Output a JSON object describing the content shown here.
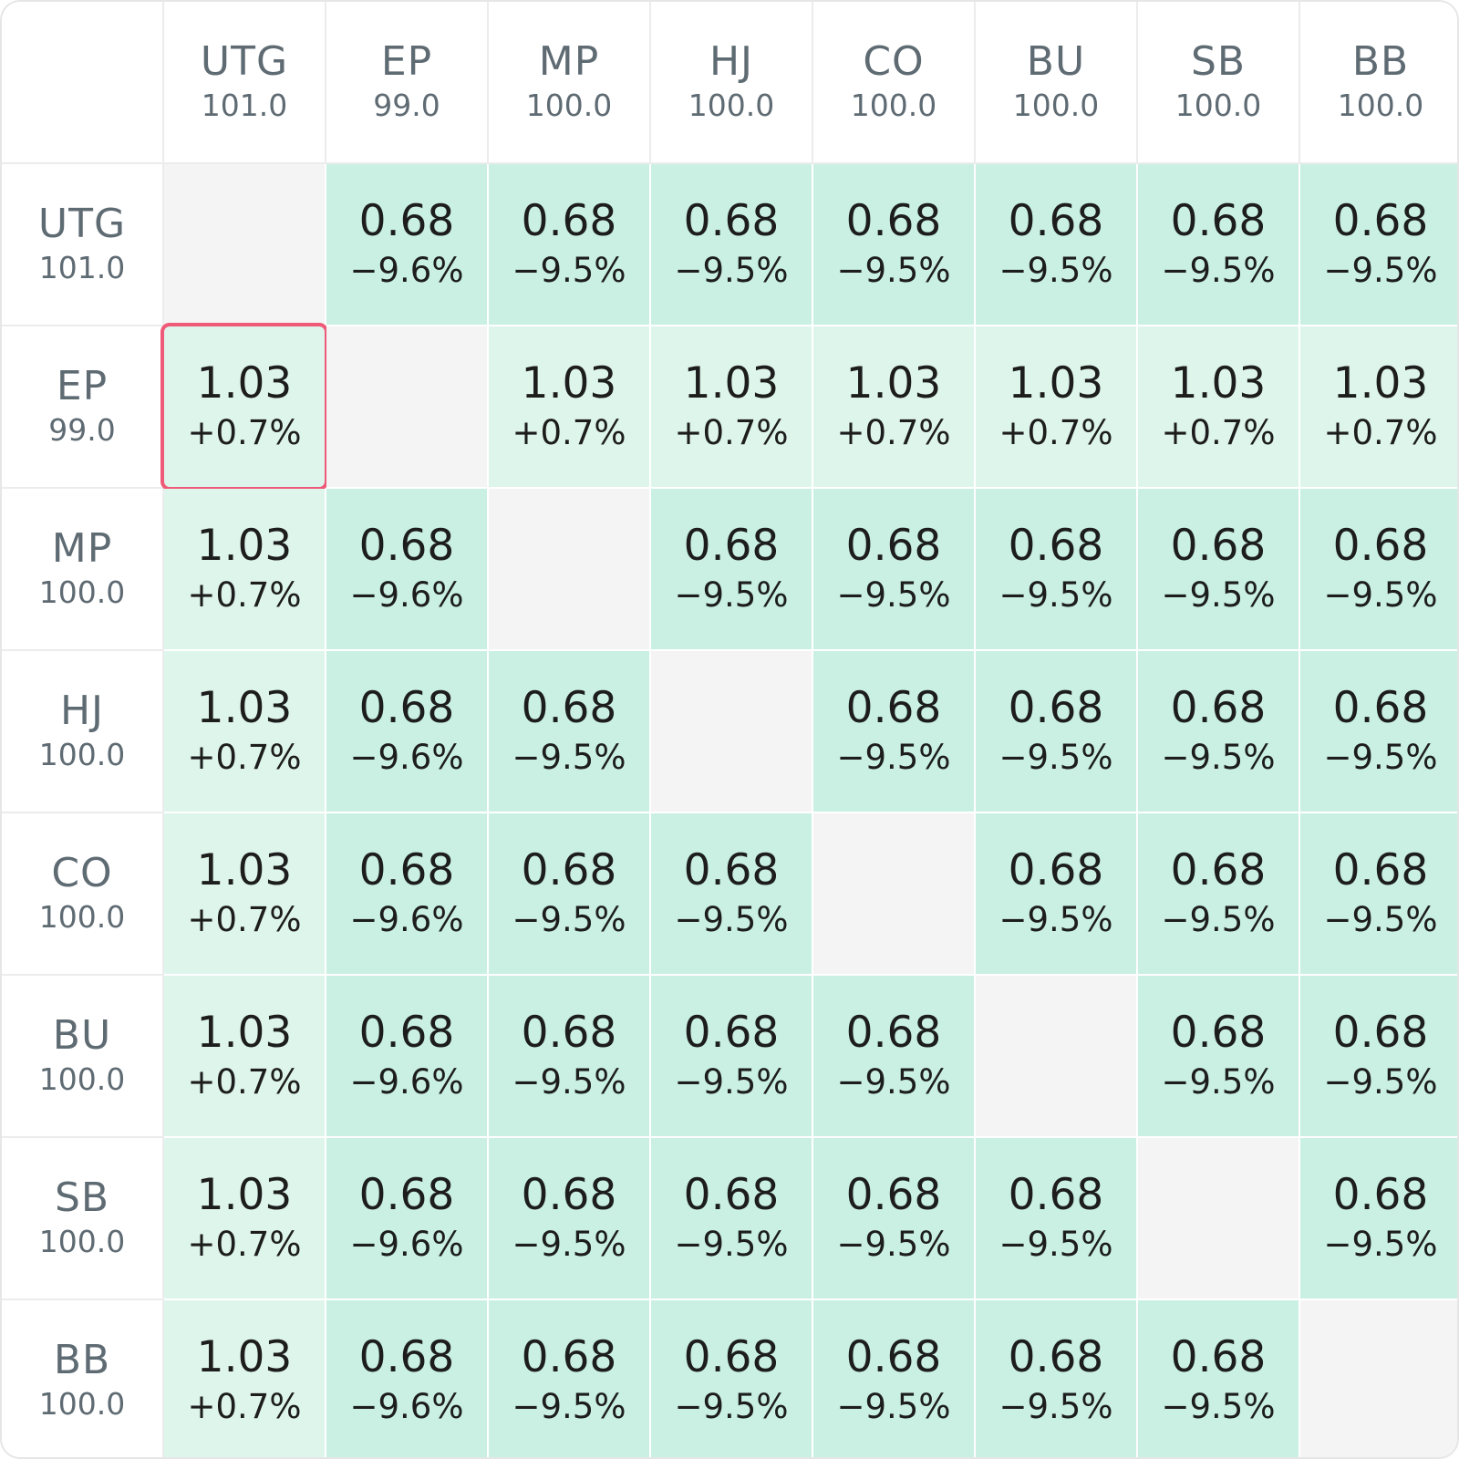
{
  "colors": {
    "cell_negative": "#c9f0e2",
    "cell_positive": "#def5ec",
    "cell_empty": "#f4f4f4",
    "selection_border": "#ee5a78"
  },
  "columns": [
    {
      "name": "UTG",
      "stack": "101.0"
    },
    {
      "name": "EP",
      "stack": "99.0"
    },
    {
      "name": "MP",
      "stack": "100.0"
    },
    {
      "name": "HJ",
      "stack": "100.0"
    },
    {
      "name": "CO",
      "stack": "100.0"
    },
    {
      "name": "BU",
      "stack": "100.0"
    },
    {
      "name": "SB",
      "stack": "100.0"
    },
    {
      "name": "BB",
      "stack": "100.0"
    }
  ],
  "rows": [
    {
      "name": "UTG",
      "stack": "101.0",
      "cells": [
        null,
        {
          "value": "0.68",
          "change": "−9.6%",
          "tone": "negative"
        },
        {
          "value": "0.68",
          "change": "−9.5%",
          "tone": "negative"
        },
        {
          "value": "0.68",
          "change": "−9.5%",
          "tone": "negative"
        },
        {
          "value": "0.68",
          "change": "−9.5%",
          "tone": "negative"
        },
        {
          "value": "0.68",
          "change": "−9.5%",
          "tone": "negative"
        },
        {
          "value": "0.68",
          "change": "−9.5%",
          "tone": "negative"
        },
        {
          "value": "0.68",
          "change": "−9.5%",
          "tone": "negative"
        }
      ]
    },
    {
      "name": "EP",
      "stack": "99.0",
      "cells": [
        {
          "value": "1.03",
          "change": "+0.7%",
          "tone": "positive",
          "selected": true
        },
        null,
        {
          "value": "1.03",
          "change": "+0.7%",
          "tone": "positive"
        },
        {
          "value": "1.03",
          "change": "+0.7%",
          "tone": "positive"
        },
        {
          "value": "1.03",
          "change": "+0.7%",
          "tone": "positive"
        },
        {
          "value": "1.03",
          "change": "+0.7%",
          "tone": "positive"
        },
        {
          "value": "1.03",
          "change": "+0.7%",
          "tone": "positive"
        },
        {
          "value": "1.03",
          "change": "+0.7%",
          "tone": "positive"
        }
      ]
    },
    {
      "name": "MP",
      "stack": "100.0",
      "cells": [
        {
          "value": "1.03",
          "change": "+0.7%",
          "tone": "positive"
        },
        {
          "value": "0.68",
          "change": "−9.6%",
          "tone": "negative"
        },
        null,
        {
          "value": "0.68",
          "change": "−9.5%",
          "tone": "negative"
        },
        {
          "value": "0.68",
          "change": "−9.5%",
          "tone": "negative"
        },
        {
          "value": "0.68",
          "change": "−9.5%",
          "tone": "negative"
        },
        {
          "value": "0.68",
          "change": "−9.5%",
          "tone": "negative"
        },
        {
          "value": "0.68",
          "change": "−9.5%",
          "tone": "negative"
        }
      ]
    },
    {
      "name": "HJ",
      "stack": "100.0",
      "cells": [
        {
          "value": "1.03",
          "change": "+0.7%",
          "tone": "positive"
        },
        {
          "value": "0.68",
          "change": "−9.6%",
          "tone": "negative"
        },
        {
          "value": "0.68",
          "change": "−9.5%",
          "tone": "negative"
        },
        null,
        {
          "value": "0.68",
          "change": "−9.5%",
          "tone": "negative"
        },
        {
          "value": "0.68",
          "change": "−9.5%",
          "tone": "negative"
        },
        {
          "value": "0.68",
          "change": "−9.5%",
          "tone": "negative"
        },
        {
          "value": "0.68",
          "change": "−9.5%",
          "tone": "negative"
        }
      ]
    },
    {
      "name": "CO",
      "stack": "100.0",
      "cells": [
        {
          "value": "1.03",
          "change": "+0.7%",
          "tone": "positive"
        },
        {
          "value": "0.68",
          "change": "−9.6%",
          "tone": "negative"
        },
        {
          "value": "0.68",
          "change": "−9.5%",
          "tone": "negative"
        },
        {
          "value": "0.68",
          "change": "−9.5%",
          "tone": "negative"
        },
        null,
        {
          "value": "0.68",
          "change": "−9.5%",
          "tone": "negative"
        },
        {
          "value": "0.68",
          "change": "−9.5%",
          "tone": "negative"
        },
        {
          "value": "0.68",
          "change": "−9.5%",
          "tone": "negative"
        }
      ]
    },
    {
      "name": "BU",
      "stack": "100.0",
      "cells": [
        {
          "value": "1.03",
          "change": "+0.7%",
          "tone": "positive"
        },
        {
          "value": "0.68",
          "change": "−9.6%",
          "tone": "negative"
        },
        {
          "value": "0.68",
          "change": "−9.5%",
          "tone": "negative"
        },
        {
          "value": "0.68",
          "change": "−9.5%",
          "tone": "negative"
        },
        {
          "value": "0.68",
          "change": "−9.5%",
          "tone": "negative"
        },
        null,
        {
          "value": "0.68",
          "change": "−9.5%",
          "tone": "negative"
        },
        {
          "value": "0.68",
          "change": "−9.5%",
          "tone": "negative"
        }
      ]
    },
    {
      "name": "SB",
      "stack": "100.0",
      "cells": [
        {
          "value": "1.03",
          "change": "+0.7%",
          "tone": "positive"
        },
        {
          "value": "0.68",
          "change": "−9.6%",
          "tone": "negative"
        },
        {
          "value": "0.68",
          "change": "−9.5%",
          "tone": "negative"
        },
        {
          "value": "0.68",
          "change": "−9.5%",
          "tone": "negative"
        },
        {
          "value": "0.68",
          "change": "−9.5%",
          "tone": "negative"
        },
        {
          "value": "0.68",
          "change": "−9.5%",
          "tone": "negative"
        },
        null,
        {
          "value": "0.68",
          "change": "−9.5%",
          "tone": "negative"
        }
      ]
    },
    {
      "name": "BB",
      "stack": "100.0",
      "cells": [
        {
          "value": "1.03",
          "change": "+0.7%",
          "tone": "positive"
        },
        {
          "value": "0.68",
          "change": "−9.6%",
          "tone": "negative"
        },
        {
          "value": "0.68",
          "change": "−9.5%",
          "tone": "negative"
        },
        {
          "value": "0.68",
          "change": "−9.5%",
          "tone": "negative"
        },
        {
          "value": "0.68",
          "change": "−9.5%",
          "tone": "negative"
        },
        {
          "value": "0.68",
          "change": "−9.5%",
          "tone": "negative"
        },
        {
          "value": "0.68",
          "change": "−9.5%",
          "tone": "negative"
        },
        null
      ]
    }
  ]
}
